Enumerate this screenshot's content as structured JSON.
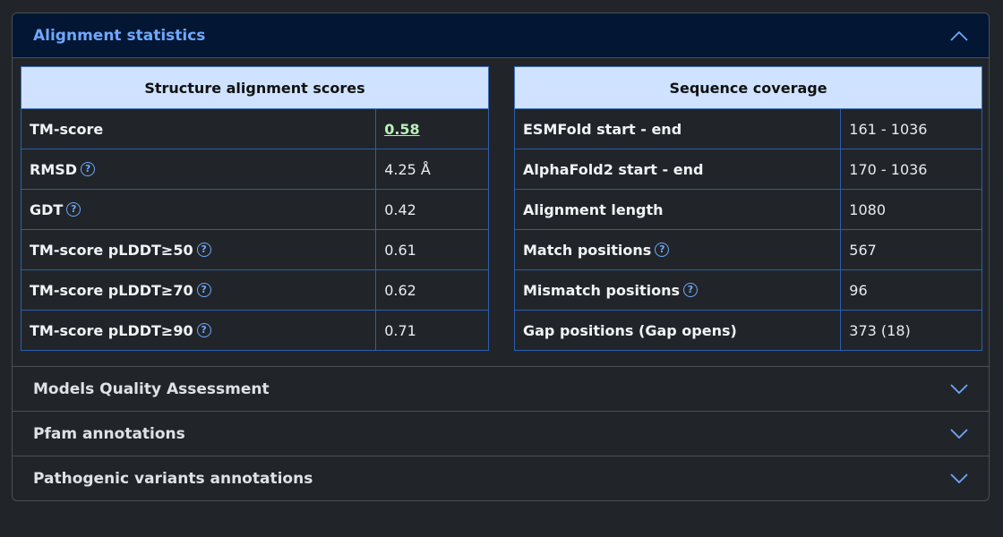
{
  "sections": {
    "alignment": {
      "title": "Alignment statistics"
    },
    "quality": {
      "title": "Models Quality Assessment"
    },
    "pfam": {
      "title": "Pfam annotations"
    },
    "pathogenic": {
      "title": "Pathogenic variants annotations"
    }
  },
  "structure_table": {
    "header": "Structure alignment scores",
    "rows": [
      {
        "label": "TM-score",
        "value": "0.58"
      },
      {
        "label": "RMSD",
        "value": "4.25 Å"
      },
      {
        "label": "GDT",
        "value": "0.42"
      },
      {
        "label": "TM-score pLDDT≥50",
        "value": "0.61"
      },
      {
        "label": "TM-score pLDDT≥70",
        "value": "0.62"
      },
      {
        "label": "TM-score pLDDT≥90",
        "value": "0.71"
      }
    ]
  },
  "coverage_table": {
    "header": "Sequence coverage",
    "rows": [
      {
        "label": "ESMFold start - end",
        "value": "161 - 1036"
      },
      {
        "label": "AlphaFold2 start - end",
        "value": "170 - 1036"
      },
      {
        "label": "Alignment length",
        "value": "1080"
      },
      {
        "label": "Match positions",
        "value": "567"
      },
      {
        "label": "Mismatch positions",
        "value": "96"
      },
      {
        "label": "Gap positions (Gap opens)",
        "value": "373 (18)"
      }
    ]
  },
  "help_glyph": "?",
  "icons": {
    "help": "question-circle-icon",
    "expand": "chevron-down-icon",
    "collapse": "chevron-up-icon"
  }
}
